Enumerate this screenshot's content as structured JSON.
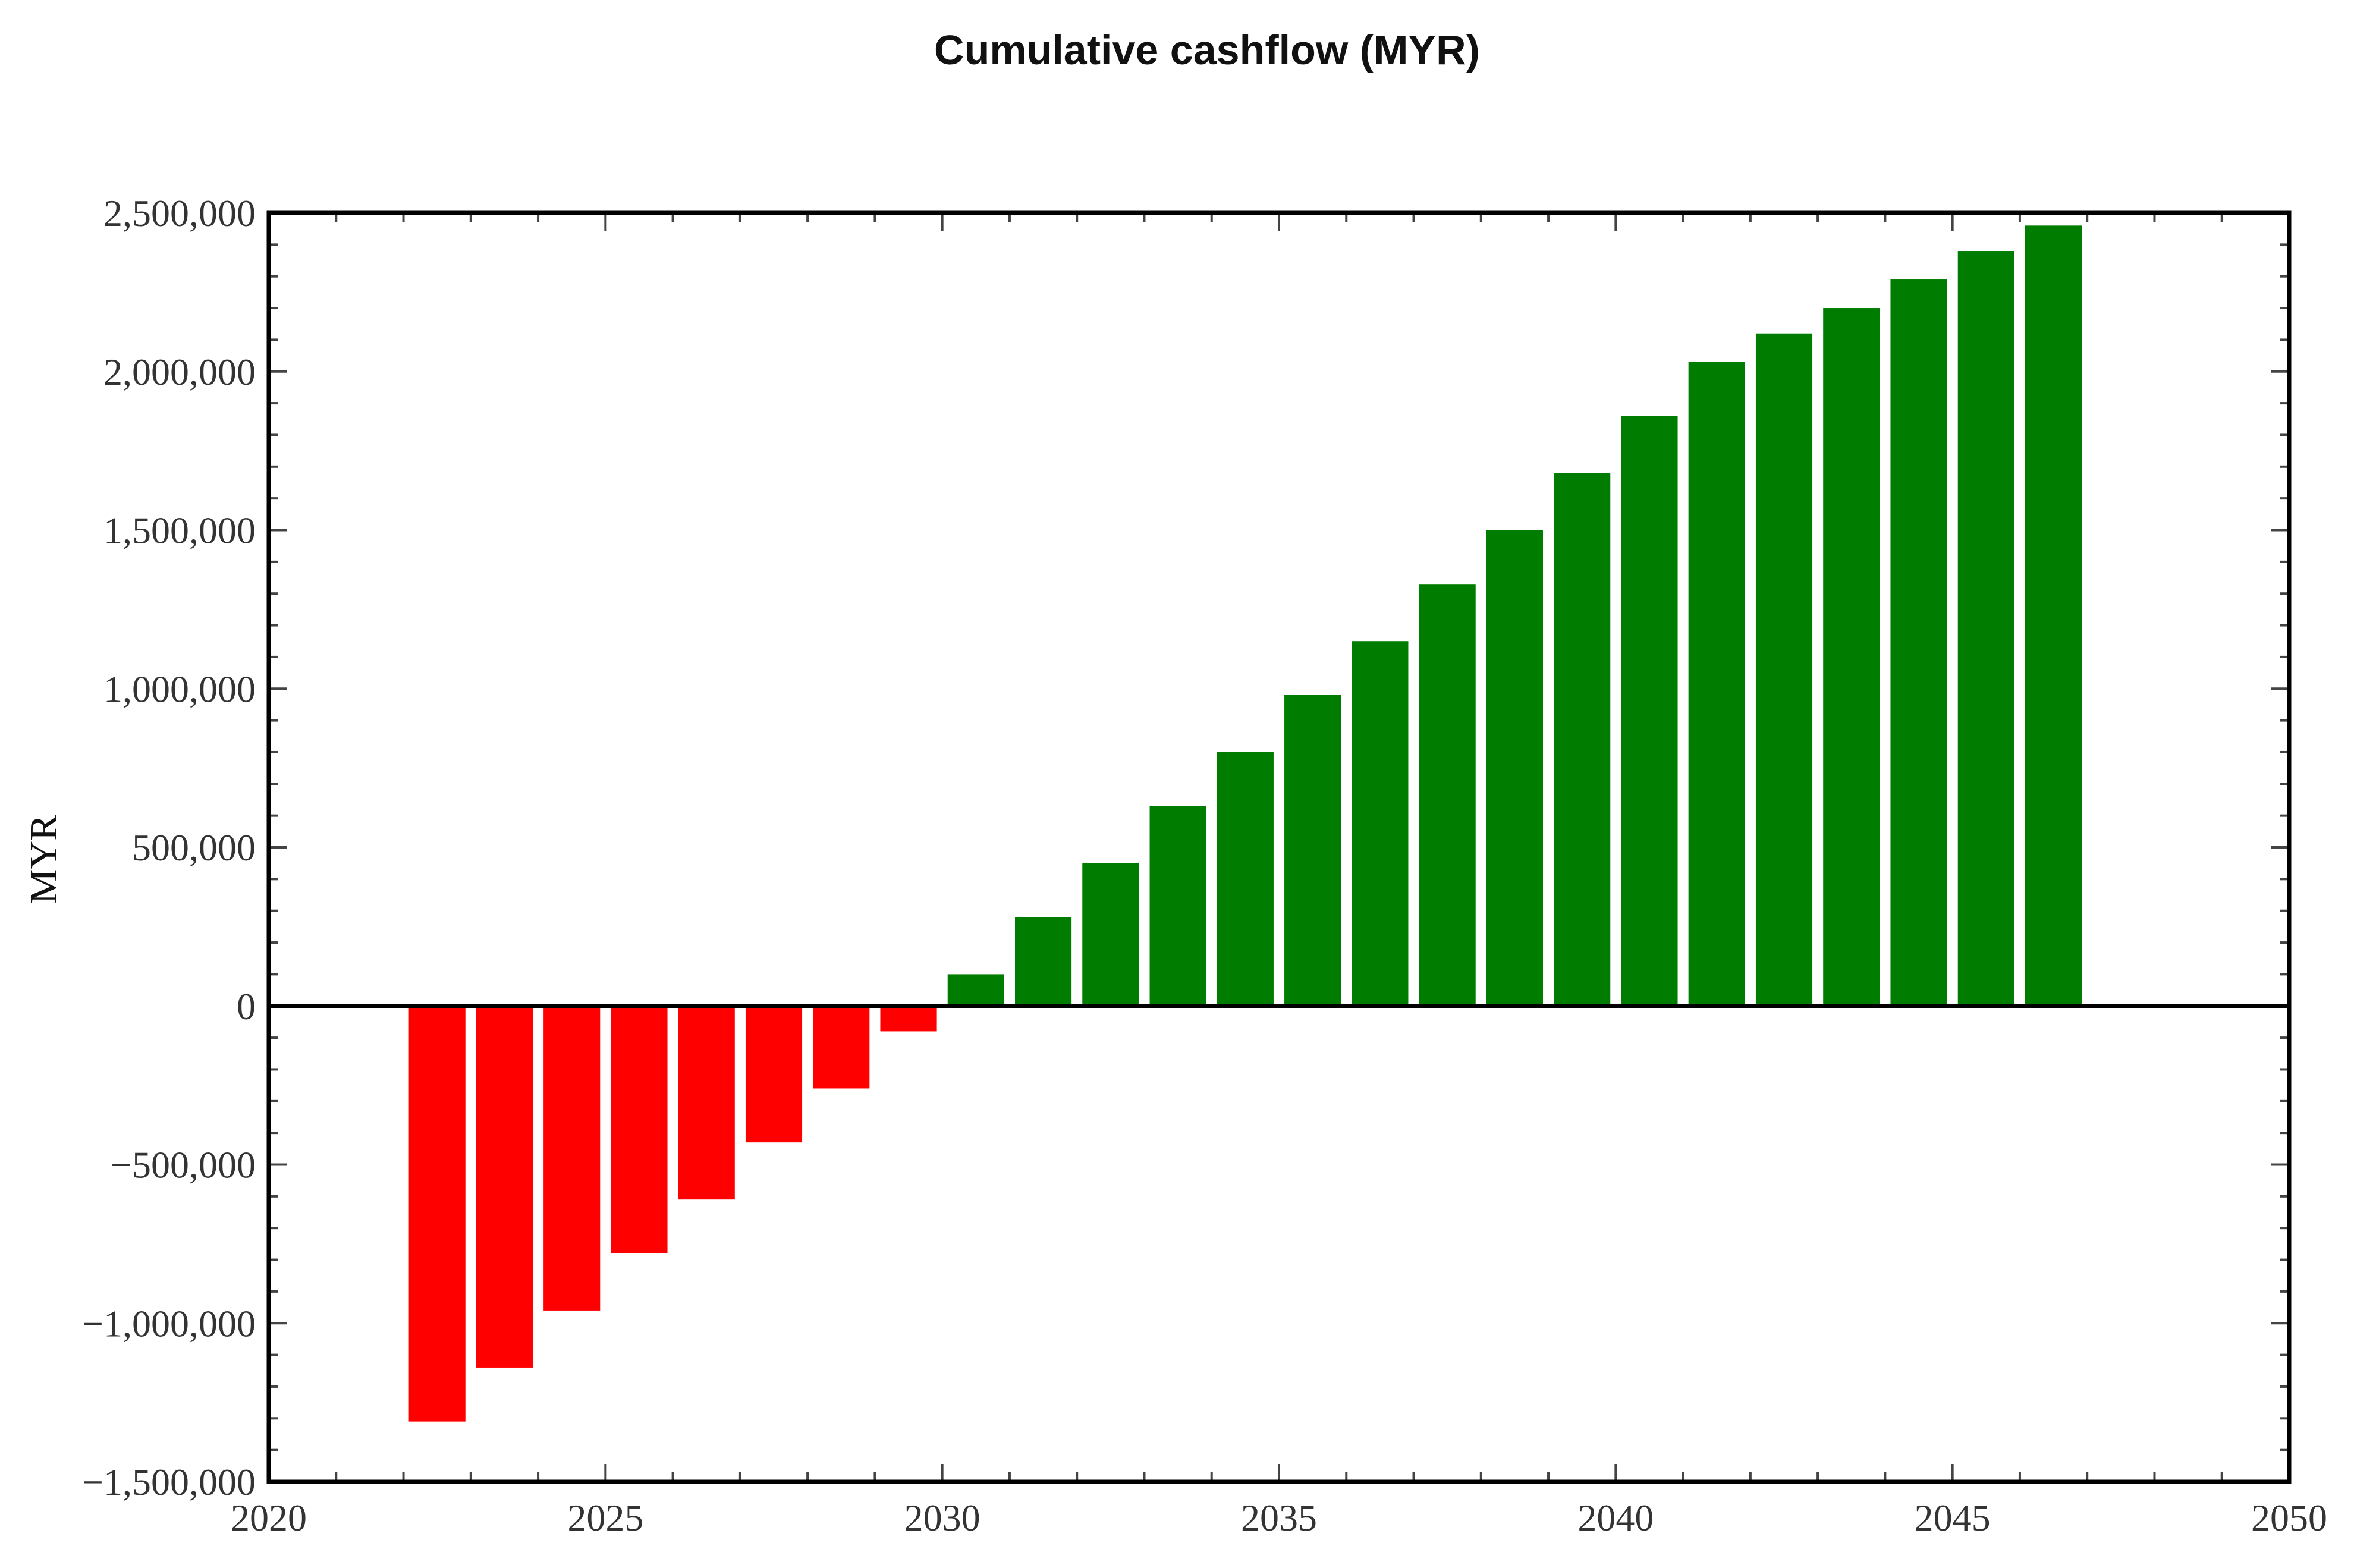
{
  "chart_data": {
    "type": "bar",
    "title": "Cumulative cashflow (MYR)",
    "xlabel": "",
    "ylabel": "MYR",
    "xlim": [
      2020,
      2050
    ],
    "ylim": [
      -1500000,
      2500000
    ],
    "x_ticks": [
      2020,
      2025,
      2030,
      2035,
      2040,
      2045,
      2050
    ],
    "x_tick_labels": [
      "2020",
      "2025",
      "2030",
      "2035",
      "2040",
      "2045",
      "2050"
    ],
    "y_ticks": [
      -1500000,
      -1000000,
      -500000,
      0,
      500000,
      1000000,
      1500000,
      2000000,
      2500000
    ],
    "y_tick_labels": [
      "−1,500,000",
      "−1,000,000",
      "−500,000",
      "0",
      "500,000",
      "1,000,000",
      "1,500,000",
      "2,000,000",
      "2,500,000"
    ],
    "grid": false,
    "x": [
      2022.5,
      2023.5,
      2024.5,
      2025.5,
      2026.5,
      2027.5,
      2028.5,
      2029.5,
      2030.5,
      2031.5,
      2032.5,
      2033.5,
      2034.5,
      2035.5,
      2036.5,
      2037.5,
      2038.5,
      2039.5,
      2040.5,
      2041.5,
      2042.5,
      2043.5,
      2044.5,
      2045.5,
      2046.5
    ],
    "values": [
      -1310000,
      -1140000,
      -960000,
      -780000,
      -610000,
      -430000,
      -260000,
      -80000,
      100000,
      280000,
      450000,
      630000,
      800000,
      980000,
      1150000,
      1330000,
      1500000,
      1680000,
      1860000,
      2030000,
      2120000,
      2200000,
      2290000,
      2380000,
      2460000
    ],
    "colors": {
      "negative": "#ff0000",
      "positive": "#007d00"
    }
  }
}
